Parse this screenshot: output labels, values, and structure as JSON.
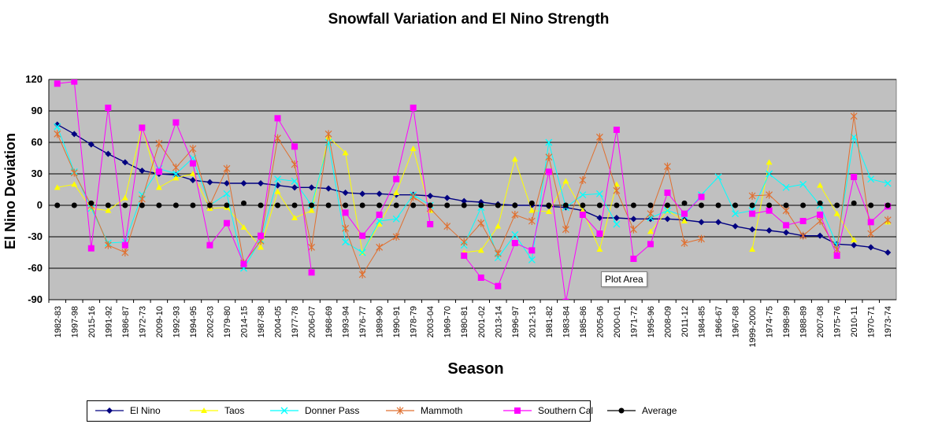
{
  "chart_data": {
    "type": "line",
    "title": "Snowfall Variation and El Nino Strength",
    "xlabel": "Season",
    "ylabel": "El Nino Deviation",
    "ylim": [
      -90,
      120
    ],
    "ytick_step": 30,
    "grid": true,
    "legend_position": "bottom",
    "categories": [
      "1982-83",
      "1997-98",
      "2015-16",
      "1991-92",
      "1986-87",
      "1972-73",
      "2009-10",
      "1992-93",
      "1994-95",
      "2002-03",
      "1979-80",
      "2014-15",
      "1987-88",
      "2004-05",
      "1977-78",
      "2006-07",
      "1968-69",
      "1993-94",
      "1976-77",
      "1989-90",
      "1990-91",
      "1978-79",
      "2003-04",
      "1969-70",
      "1980-81",
      "2001-02",
      "2013-14",
      "1996-97",
      "2012-13",
      "1981-82",
      "1983-84",
      "1985-86",
      "2005-06",
      "2000-01",
      "1971-72",
      "1995-96",
      "2008-09",
      "2011-12",
      "1984-85",
      "1966-67",
      "1967-68",
      "1999-2000",
      "1974-75",
      "1998-99",
      "1988-89",
      "2007-08",
      "1975-76",
      "2010-11",
      "1970-71",
      "1973-74"
    ],
    "series": [
      {
        "name": "El Nino",
        "color": "#000080",
        "marker": "diamond",
        "values": [
          77,
          68,
          58,
          49,
          41,
          33,
          30,
          29,
          24,
          22,
          21,
          21,
          21,
          19,
          17,
          17,
          16,
          12,
          11,
          11,
          10,
          10,
          9,
          7,
          4,
          3,
          1,
          0,
          0,
          -1,
          -2,
          -5,
          -12,
          -12,
          -13,
          -13,
          -13,
          -14,
          -16,
          -16,
          -20,
          -23,
          -24,
          -26,
          -29,
          -29,
          -37,
          -38,
          -40,
          -45
        ]
      },
      {
        "name": "Taos",
        "color": "#ffff00",
        "marker": "triangle",
        "values": [
          17,
          20,
          -3,
          -5,
          7,
          75,
          17,
          26,
          30,
          -3,
          -2,
          -21,
          -40,
          13,
          -12,
          -5,
          65,
          50,
          -45,
          -18,
          12,
          54,
          -5,
          null,
          -45,
          -43,
          -20,
          44,
          -5,
          -6,
          23,
          -5,
          -42,
          20,
          null,
          -25,
          -5,
          -15,
          null,
          null,
          null,
          -42,
          41,
          null,
          null,
          19,
          -8,
          -33,
          null,
          -16
        ]
      },
      {
        "name": "Donner Pass",
        "color": "#00ffff",
        "marker": "x",
        "values": [
          75,
          32,
          -3,
          -36,
          -35,
          10,
          35,
          30,
          45,
          0,
          11,
          -60,
          -33,
          25,
          23,
          0,
          60,
          -35,
          -45,
          -15,
          -13,
          10,
          0,
          null,
          -38,
          -2,
          -50,
          -28,
          -52,
          60,
          -2,
          10,
          11,
          -18,
          null,
          -12,
          -5,
          -10,
          10,
          27,
          -8,
          -5,
          30,
          17,
          20,
          0,
          -38,
          65,
          25,
          21
        ]
      },
      {
        "name": "Mammoth",
        "color": "#e07030",
        "marker": "star",
        "values": [
          68,
          31,
          0,
          -38,
          -45,
          6,
          59,
          36,
          54,
          0,
          35,
          -55,
          -34,
          64,
          39,
          -40,
          68,
          -22,
          -66,
          -40,
          -30,
          8,
          -3,
          -20,
          -35,
          -17,
          -46,
          -9,
          -15,
          46,
          -23,
          24,
          65,
          14,
          -23,
          -8,
          37,
          -36,
          -32,
          null,
          null,
          9,
          10,
          -5,
          -29,
          -15,
          -42,
          85,
          -27,
          -14
        ]
      },
      {
        "name": "Southern Cal",
        "color": "#ff00ff",
        "marker": "square",
        "values": [
          116,
          118,
          -41,
          93,
          -38,
          74,
          32,
          79,
          40,
          -38,
          -17,
          -56,
          -29,
          83,
          56,
          -64,
          null,
          -7,
          -29,
          -9,
          25,
          93,
          -18,
          null,
          -48,
          -69,
          -77,
          -36,
          -43,
          32,
          -92,
          -9,
          -27,
          72,
          -51,
          -37,
          12,
          -8,
          8,
          null,
          null,
          -8,
          -5,
          -19,
          -15,
          -9,
          -48,
          27,
          -16,
          -1
        ]
      },
      {
        "name": "Average",
        "color": "#000000",
        "marker": "circle",
        "values": [
          0,
          0,
          2,
          0,
          0,
          0,
          0,
          0,
          0,
          0,
          0,
          2,
          0,
          0,
          0,
          0,
          0,
          0,
          0,
          0,
          0,
          0,
          0,
          0,
          0,
          0,
          0,
          0,
          2,
          0,
          0,
          0,
          0,
          0,
          0,
          0,
          0,
          2,
          0,
          0,
          0,
          0,
          0,
          0,
          0,
          2,
          0,
          2,
          0,
          0
        ]
      }
    ]
  },
  "tooltip": {
    "label": "Plot Area"
  }
}
